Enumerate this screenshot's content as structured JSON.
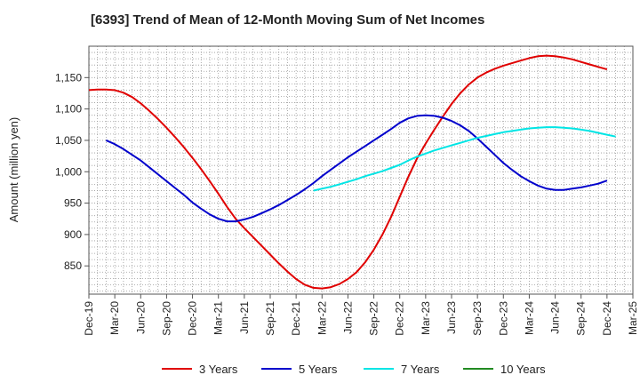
{
  "chart_data": {
    "type": "line",
    "title": "[6393]  Trend of Mean of 12-Month Moving Sum of Net Incomes",
    "xlabel": "",
    "ylabel": "Amount (million yen)",
    "ylim": [
      805,
      1200
    ],
    "yticks": [
      850,
      900,
      950,
      1000,
      1050,
      1100,
      1150
    ],
    "ytick_labels": [
      "850",
      "900",
      "950",
      "1,000",
      "1,050",
      "1,100",
      "1,150"
    ],
    "xlim": [
      "2019-12",
      "2025-03"
    ],
    "xtick_labels": [
      "Dec-19",
      "Mar-20",
      "Jun-20",
      "Sep-20",
      "Dec-20",
      "Mar-21",
      "Jun-21",
      "Sep-21",
      "Dec-21",
      "Mar-22",
      "Jun-22",
      "Sep-22",
      "Dec-22",
      "Mar-23",
      "Jun-23",
      "Sep-23",
      "Dec-23",
      "Mar-24",
      "Jun-24",
      "Sep-24",
      "Dec-24",
      "Mar-25"
    ],
    "grid": true,
    "legend_position": "bottom",
    "series": [
      {
        "name": "3 Years",
        "color": "#e00000",
        "points": [
          [
            "2019-12",
            1130
          ],
          [
            "2020-01",
            1131
          ],
          [
            "2020-02",
            1131
          ],
          [
            "2020-03",
            1130
          ],
          [
            "2020-04",
            1126
          ],
          [
            "2020-05",
            1119
          ],
          [
            "2020-06",
            1109
          ],
          [
            "2020-07",
            1097
          ],
          [
            "2020-08",
            1084
          ],
          [
            "2020-09",
            1070
          ],
          [
            "2020-10",
            1055
          ],
          [
            "2020-11",
            1039
          ],
          [
            "2020-12",
            1022
          ],
          [
            "2021-01",
            1004
          ],
          [
            "2021-02",
            985
          ],
          [
            "2021-03",
            965
          ],
          [
            "2021-04",
            944
          ],
          [
            "2021-05",
            925
          ],
          [
            "2021-06",
            910
          ],
          [
            "2021-07",
            896
          ],
          [
            "2021-08",
            882
          ],
          [
            "2021-09",
            868
          ],
          [
            "2021-10",
            854
          ],
          [
            "2021-11",
            841
          ],
          [
            "2021-12",
            829
          ],
          [
            "2022-01",
            820
          ],
          [
            "2022-02",
            815
          ],
          [
            "2022-03",
            814
          ],
          [
            "2022-04",
            816
          ],
          [
            "2022-05",
            821
          ],
          [
            "2022-06",
            829
          ],
          [
            "2022-07",
            840
          ],
          [
            "2022-08",
            856
          ],
          [
            "2022-09",
            876
          ],
          [
            "2022-10",
            900
          ],
          [
            "2022-11",
            928
          ],
          [
            "2022-12",
            960
          ],
          [
            "2023-01",
            992
          ],
          [
            "2023-02",
            1021
          ],
          [
            "2023-03",
            1045
          ],
          [
            "2023-04",
            1067
          ],
          [
            "2023-05",
            1088
          ],
          [
            "2023-06",
            1108
          ],
          [
            "2023-07",
            1125
          ],
          [
            "2023-08",
            1139
          ],
          [
            "2023-09",
            1150
          ],
          [
            "2023-10",
            1158
          ],
          [
            "2023-11",
            1164
          ],
          [
            "2023-12",
            1169
          ],
          [
            "2024-01",
            1173
          ],
          [
            "2024-02",
            1177
          ],
          [
            "2024-03",
            1181
          ],
          [
            "2024-04",
            1184
          ],
          [
            "2024-05",
            1185
          ],
          [
            "2024-06",
            1184
          ],
          [
            "2024-07",
            1182
          ],
          [
            "2024-08",
            1179
          ],
          [
            "2024-09",
            1175
          ],
          [
            "2024-10",
            1171
          ],
          [
            "2024-11",
            1167
          ],
          [
            "2024-12",
            1163
          ]
        ]
      },
      {
        "name": "5 Years",
        "color": "#0000cc",
        "points": [
          [
            "2020-02",
            1050
          ],
          [
            "2020-03",
            1044
          ],
          [
            "2020-04",
            1036
          ],
          [
            "2020-05",
            1027
          ],
          [
            "2020-06",
            1018
          ],
          [
            "2020-07",
            1007
          ],
          [
            "2020-08",
            996
          ],
          [
            "2020-09",
            985
          ],
          [
            "2020-10",
            974
          ],
          [
            "2020-11",
            963
          ],
          [
            "2020-12",
            951
          ],
          [
            "2021-01",
            941
          ],
          [
            "2021-02",
            932
          ],
          [
            "2021-03",
            925
          ],
          [
            "2021-04",
            921
          ],
          [
            "2021-05",
            921
          ],
          [
            "2021-06",
            924
          ],
          [
            "2021-07",
            928
          ],
          [
            "2021-08",
            934
          ],
          [
            "2021-09",
            940
          ],
          [
            "2021-10",
            947
          ],
          [
            "2021-11",
            955
          ],
          [
            "2021-12",
            963
          ],
          [
            "2022-01",
            972
          ],
          [
            "2022-02",
            982
          ],
          [
            "2022-03",
            993
          ],
          [
            "2022-04",
            1003
          ],
          [
            "2022-05",
            1013
          ],
          [
            "2022-06",
            1023
          ],
          [
            "2022-07",
            1032
          ],
          [
            "2022-08",
            1041
          ],
          [
            "2022-09",
            1050
          ],
          [
            "2022-10",
            1059
          ],
          [
            "2022-11",
            1068
          ],
          [
            "2022-12",
            1078
          ],
          [
            "2023-01",
            1085
          ],
          [
            "2023-02",
            1089
          ],
          [
            "2023-03",
            1090
          ],
          [
            "2023-04",
            1089
          ],
          [
            "2023-05",
            1086
          ],
          [
            "2023-06",
            1081
          ],
          [
            "2023-07",
            1074
          ],
          [
            "2023-08",
            1065
          ],
          [
            "2023-09",
            1053
          ],
          [
            "2023-10",
            1040
          ],
          [
            "2023-11",
            1027
          ],
          [
            "2023-12",
            1014
          ],
          [
            "2024-01",
            1003
          ],
          [
            "2024-02",
            993
          ],
          [
            "2024-03",
            985
          ],
          [
            "2024-04",
            978
          ],
          [
            "2024-05",
            973
          ],
          [
            "2024-06",
            971
          ],
          [
            "2024-07",
            971
          ],
          [
            "2024-08",
            973
          ],
          [
            "2024-09",
            975
          ],
          [
            "2024-10",
            978
          ],
          [
            "2024-11",
            981
          ],
          [
            "2024-12",
            986
          ]
        ]
      },
      {
        "name": "7 Years",
        "color": "#00e5e5",
        "points": [
          [
            "2022-02",
            970
          ],
          [
            "2022-03",
            973
          ],
          [
            "2022-04",
            976
          ],
          [
            "2022-05",
            980
          ],
          [
            "2022-06",
            984
          ],
          [
            "2022-07",
            988
          ],
          [
            "2022-08",
            993
          ],
          [
            "2022-09",
            997
          ],
          [
            "2022-10",
            1001
          ],
          [
            "2022-11",
            1006
          ],
          [
            "2022-12",
            1011
          ],
          [
            "2023-01",
            1018
          ],
          [
            "2023-02",
            1024
          ],
          [
            "2023-03",
            1029
          ],
          [
            "2023-04",
            1034
          ],
          [
            "2023-05",
            1038
          ],
          [
            "2023-06",
            1042
          ],
          [
            "2023-07",
            1046
          ],
          [
            "2023-08",
            1050
          ],
          [
            "2023-09",
            1054
          ],
          [
            "2023-10",
            1057
          ],
          [
            "2023-11",
            1060
          ],
          [
            "2023-12",
            1063
          ],
          [
            "2024-01",
            1065
          ],
          [
            "2024-02",
            1067
          ],
          [
            "2024-03",
            1069
          ],
          [
            "2024-04",
            1070
          ],
          [
            "2024-05",
            1071
          ],
          [
            "2024-06",
            1071
          ],
          [
            "2024-07",
            1070
          ],
          [
            "2024-08",
            1069
          ],
          [
            "2024-09",
            1067
          ],
          [
            "2024-10",
            1065
          ],
          [
            "2024-11",
            1062
          ],
          [
            "2024-12",
            1059
          ],
          [
            "2025-01",
            1056
          ]
        ]
      },
      {
        "name": "10 Years",
        "color": "#228b22",
        "points": []
      }
    ]
  }
}
